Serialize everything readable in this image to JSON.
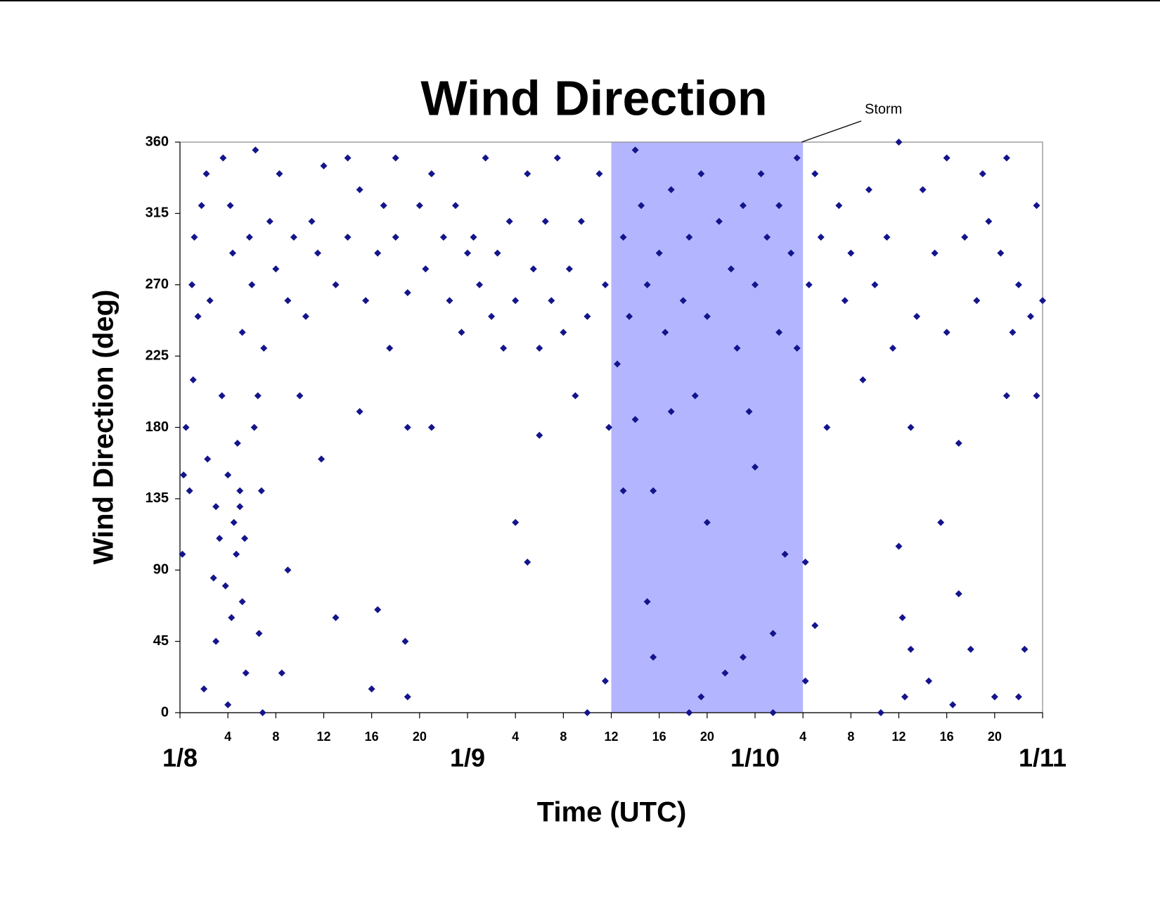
{
  "chart_data": {
    "type": "scatter",
    "title": "Wind Direction",
    "x_label": "Time (UTC)",
    "y_label": "Wind Direction (deg)",
    "color": "#14148c",
    "marker": "diamond",
    "xlim": [
      0,
      72
    ],
    "xticks": [
      {
        "value": 0,
        "label": "1/8"
      },
      4,
      8,
      12,
      16,
      20,
      {
        "value": 24,
        "label": "1/9"
      },
      {
        "value": 28,
        "label": "4"
      },
      {
        "value": 32,
        "label": "8"
      },
      {
        "value": 36,
        "label": "12"
      },
      {
        "value": 40,
        "label": "16"
      },
      {
        "value": 44,
        "label": "20"
      },
      {
        "value": 48,
        "label": "1/10"
      },
      {
        "value": 52,
        "label": "4"
      },
      {
        "value": 56,
        "label": "8"
      },
      {
        "value": 60,
        "label": "12"
      },
      {
        "value": 64,
        "label": "16"
      },
      {
        "value": 68,
        "label": "20"
      },
      {
        "value": 72,
        "label": "1/11"
      }
    ],
    "ylim": [
      0,
      360
    ],
    "yticks": [
      0,
      45,
      90,
      135,
      180,
      225,
      270,
      315,
      360
    ],
    "highlight": {
      "label": "Storm",
      "xrange": [
        36,
        52
      ],
      "color": "#b3b6ff"
    },
    "x": [
      0.2,
      0.3,
      0.5,
      0.8,
      1,
      1.2,
      1.5,
      1.8,
      2,
      2.2,
      2.5,
      1.1,
      2.3,
      2.8,
      3,
      3,
      3.3,
      3.5,
      3.6,
      3.8,
      4,
      4,
      4.2,
      4.3,
      4.5,
      4.7,
      4.8,
      5,
      5,
      5.2,
      5.4,
      5.5,
      5.2,
      4.4,
      5.8,
      6,
      6.2,
      6.3,
      6.5,
      6.8,
      6.6,
      7,
      6.9,
      7.5,
      8,
      8.3,
      8.5,
      9,
      9,
      9.5,
      10,
      10.5,
      11,
      11.5,
      12,
      11.8,
      13,
      13,
      14,
      14,
      15,
      15,
      15.5,
      16,
      16.5,
      17,
      16.5,
      17.5,
      18,
      18,
      19,
      19,
      18.8,
      19,
      20,
      20.5,
      21,
      21,
      22,
      22.5,
      23,
      23.5,
      24,
      24.5,
      25,
      25.5,
      26,
      26.5,
      27,
      27.5,
      28,
      28,
      29,
      29,
      29.5,
      30,
      30,
      30.5,
      31,
      31.5,
      32,
      32.5,
      33,
      33.5,
      34,
      34,
      35,
      35.5,
      35.5,
      35.8,
      36.5,
      37,
      37,
      37.5,
      38,
      38,
      38.5,
      39,
      39,
      39.5,
      39.5,
      40,
      40.5,
      41,
      41,
      42,
      42.5,
      42.5,
      43,
      43.5,
      43.5,
      44,
      44,
      45,
      45.5,
      46,
      46.5,
      47,
      47,
      47.5,
      48,
      48,
      48.5,
      49,
      49.5,
      49.5,
      50,
      50.5,
      50,
      51,
      51.5,
      51.5,
      52.2,
      52.2,
      52.5,
      53,
      53,
      53.5,
      54,
      55,
      55.5,
      56,
      57,
      57.5,
      58,
      58.5,
      59,
      59.5,
      60,
      60,
      60.3,
      60.5,
      61,
      61,
      61.5,
      62,
      62.5,
      63,
      63.5,
      64,
      64,
      64.5,
      65,
      65,
      65.5,
      66,
      66.5,
      67,
      67.5,
      68,
      68.5,
      69,
      69,
      69.5,
      70,
      70,
      70.5,
      71,
      71.5,
      71.5,
      72
    ],
    "values": [
      100,
      150,
      180,
      140,
      270,
      300,
      250,
      320,
      15,
      340,
      260,
      210,
      160,
      85,
      130,
      45,
      110,
      200,
      350,
      80,
      150,
      5,
      320,
      60,
      120,
      100,
      170,
      130,
      140,
      240,
      110,
      25,
      70,
      290,
      300,
      270,
      180,
      355,
      200,
      140,
      50,
      230,
      0,
      310,
      280,
      340,
      25,
      90,
      260,
      300,
      200,
      250,
      310,
      290,
      345,
      160,
      270,
      60,
      300,
      350,
      330,
      190,
      260,
      15,
      290,
      320,
      65,
      230,
      350,
      300,
      180,
      265,
      45,
      10,
      320,
      280,
      180,
      340,
      300,
      260,
      320,
      240,
      290,
      300,
      270,
      350,
      250,
      290,
      230,
      310,
      120,
      260,
      95,
      340,
      280,
      175,
      230,
      310,
      260,
      350,
      240,
      280,
      200,
      310,
      250,
      0,
      340,
      270,
      20,
      180,
      220,
      300,
      140,
      250,
      355,
      185,
      320,
      270,
      70,
      35,
      140,
      290,
      240,
      330,
      190,
      260,
      300,
      0,
      200,
      340,
      10,
      250,
      120,
      310,
      25,
      280,
      230,
      320,
      35,
      190,
      270,
      155,
      340,
      300,
      0,
      50,
      240,
      100,
      320,
      290,
      350,
      230,
      20,
      95,
      270,
      55,
      340,
      300,
      180,
      320,
      260,
      290,
      210,
      330,
      270,
      0,
      300,
      230,
      360,
      105,
      60,
      10,
      180,
      40,
      250,
      330,
      20,
      290,
      120,
      350,
      240,
      5,
      170,
      75,
      300,
      40,
      260,
      340,
      310,
      10,
      290,
      350,
      200,
      240,
      10,
      270,
      40,
      250,
      320,
      200,
      260
    ]
  }
}
